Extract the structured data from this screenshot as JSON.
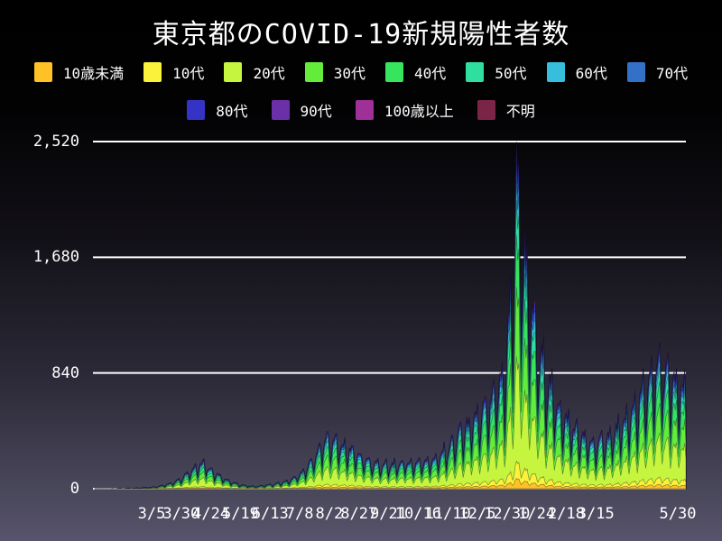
{
  "colors": {
    "text": "#ffffff",
    "gridline": "#ffffff",
    "background_top": "#000000",
    "background_bottom": "#57546b",
    "edge_stroke": "rgba(12,8,30,0.45)"
  },
  "legend": {
    "row_split": 8
  },
  "chart_data": {
    "type": "area",
    "stacked": true,
    "title": "東京都のCOVID-19新規陽性者数",
    "ylim": [
      0,
      2520
    ],
    "grid": true,
    "legend_position": "top",
    "y_ticks": [
      {
        "value": 0,
        "label": "0"
      },
      {
        "value": 840,
        "label": "840"
      },
      {
        "value": 1680,
        "label": "1,680"
      },
      {
        "value": 2520,
        "label": "2,520"
      }
    ],
    "x_ticks": [
      {
        "label": "3/5",
        "day": 48
      },
      {
        "label": "3/30",
        "day": 73
      },
      {
        "label": "4/24",
        "day": 98
      },
      {
        "label": "5/19",
        "day": 123
      },
      {
        "label": "6/13",
        "day": 148
      },
      {
        "label": "7/8",
        "day": 173
      },
      {
        "label": "8/2",
        "day": 198
      },
      {
        "label": "8/27",
        "day": 223
      },
      {
        "label": "9/21",
        "day": 248
      },
      {
        "label": "10/16",
        "day": 273
      },
      {
        "label": "11/10",
        "day": 298
      },
      {
        "label": "12/5",
        "day": 323
      },
      {
        "label": "12/30",
        "day": 348
      },
      {
        "label": "1/24",
        "day": 373
      },
      {
        "label": "2/18",
        "day": 398
      },
      {
        "label": "3/15",
        "day": 423
      },
      {
        "label": "5/30",
        "day": 499
      }
    ],
    "age_groups": [
      {
        "label": "10歳未満",
        "color": "#FFC125",
        "fraction": 0.03
      },
      {
        "label": "10代",
        "color": "#FBF23B",
        "fraction": 0.05
      },
      {
        "label": "20代",
        "color": "#C6F53F",
        "fraction": 0.3
      },
      {
        "label": "30代",
        "color": "#64EC3B",
        "fraction": 0.2
      },
      {
        "label": "40代",
        "color": "#36E45E",
        "fraction": 0.15
      },
      {
        "label": "50代",
        "color": "#2EDFA0",
        "fraction": 0.1
      },
      {
        "label": "60代",
        "color": "#38BEDD",
        "fraction": 0.06
      },
      {
        "label": "70代",
        "color": "#3470C8",
        "fraction": 0.05
      },
      {
        "label": "80代",
        "color": "#3533C6",
        "fraction": 0.035
      },
      {
        "label": "90代",
        "color": "#6B2FA8",
        "fraction": 0.013
      },
      {
        "label": "100歳以上",
        "color": "#9E3097",
        "fraction": 0.001
      },
      {
        "label": "不明",
        "color": "#7A2547",
        "fraction": 0.011
      }
    ],
    "days_total": 499,
    "daily_envelope": [
      [
        0,
        0
      ],
      [
        10,
        1
      ],
      [
        20,
        2
      ],
      [
        30,
        3
      ],
      [
        40,
        5
      ],
      [
        48,
        10
      ],
      [
        54,
        16
      ],
      [
        60,
        28
      ],
      [
        66,
        42
      ],
      [
        73,
        70
      ],
      [
        80,
        120
      ],
      [
        86,
        150
      ],
      [
        91,
        170
      ],
      [
        95,
        150
      ],
      [
        100,
        115
      ],
      [
        106,
        82
      ],
      [
        112,
        58
      ],
      [
        118,
        38
      ],
      [
        123,
        26
      ],
      [
        129,
        18
      ],
      [
        135,
        15
      ],
      [
        141,
        19
      ],
      [
        148,
        27
      ],
      [
        154,
        34
      ],
      [
        160,
        45
      ],
      [
        166,
        62
      ],
      [
        173,
        95
      ],
      [
        179,
        140
      ],
      [
        185,
        210
      ],
      [
        191,
        290
      ],
      [
        197,
        345
      ],
      [
        202,
        320
      ],
      [
        208,
        290
      ],
      [
        214,
        265
      ],
      [
        220,
        240
      ],
      [
        226,
        205
      ],
      [
        232,
        180
      ],
      [
        238,
        170
      ],
      [
        244,
        162
      ],
      [
        250,
        158
      ],
      [
        256,
        168
      ],
      [
        262,
        175
      ],
      [
        268,
        172
      ],
      [
        274,
        178
      ],
      [
        280,
        188
      ],
      [
        286,
        196
      ],
      [
        292,
        225
      ],
      [
        298,
        272
      ],
      [
        304,
        330
      ],
      [
        310,
        395
      ],
      [
        316,
        430
      ],
      [
        322,
        470
      ],
      [
        328,
        520
      ],
      [
        334,
        570
      ],
      [
        340,
        660
      ],
      [
        344,
        720
      ],
      [
        347,
        820
      ],
      [
        349,
        1060
      ],
      [
        352,
        1220
      ],
      [
        354,
        1600
      ],
      [
        356,
        2150
      ],
      [
        358,
        1900
      ],
      [
        360,
        1650
      ],
      [
        363,
        1550
      ],
      [
        366,
        1330
      ],
      [
        369,
        1180
      ],
      [
        373,
        1000
      ],
      [
        377,
        860
      ],
      [
        381,
        760
      ],
      [
        386,
        640
      ],
      [
        391,
        560
      ],
      [
        396,
        480
      ],
      [
        401,
        430
      ],
      [
        406,
        390
      ],
      [
        411,
        345
      ],
      [
        416,
        320
      ],
      [
        421,
        305
      ],
      [
        426,
        310
      ],
      [
        431,
        330
      ],
      [
        436,
        360
      ],
      [
        441,
        395
      ],
      [
        446,
        440
      ],
      [
        451,
        490
      ],
      [
        456,
        550
      ],
      [
        461,
        620
      ],
      [
        466,
        680
      ],
      [
        471,
        730
      ],
      [
        475,
        790
      ],
      [
        477,
        870
      ],
      [
        480,
        800
      ],
      [
        484,
        740
      ],
      [
        488,
        710
      ],
      [
        492,
        680
      ],
      [
        496,
        650
      ],
      [
        499,
        620
      ]
    ],
    "weekday_factors": [
      1.18,
      1.28,
      0.92,
      0.55,
      0.82,
      1.06,
      1.16
    ],
    "peak": {
      "day": 356,
      "value": 2520
    }
  }
}
